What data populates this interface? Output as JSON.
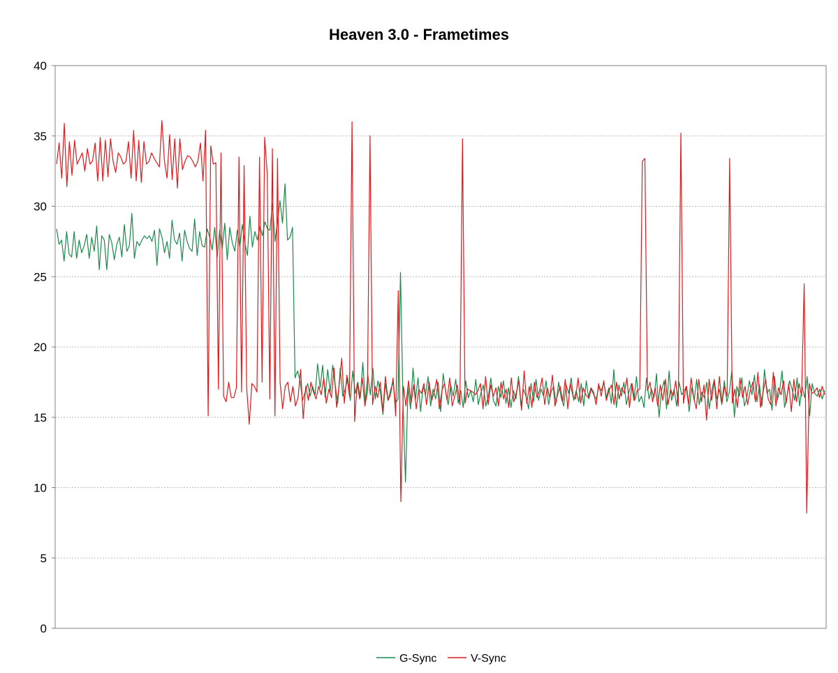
{
  "chart_data": {
    "type": "line",
    "title": "Heaven 3.0 - Frametimes",
    "xlabel": "",
    "ylabel": "",
    "ylim": [
      0,
      40
    ],
    "yticks": [
      0,
      5,
      10,
      15,
      20,
      25,
      30,
      35,
      40
    ],
    "grid": "horizontal dotted",
    "legend_position": "bottom",
    "series": [
      {
        "name": "G-Sync",
        "color": "#1a8a4a",
        "values": [
          28.4,
          27.3,
          27.6,
          26.1,
          28.2,
          26.6,
          26.4,
          28.2,
          26.3,
          27.6,
          26.7,
          27.2,
          28.0,
          26.3,
          27.8,
          26.8,
          28.6,
          25.5,
          27.9,
          27.6,
          25.5,
          28.0,
          27.4,
          26.2,
          27.3,
          27.8,
          26.4,
          28.7,
          26.8,
          27.2,
          29.5,
          26.3,
          27.5,
          27.2,
          27.6,
          27.9,
          27.7,
          27.9,
          27.5,
          28.3,
          25.8,
          28.4,
          27.8,
          26.7,
          27.5,
          26.3,
          29.0,
          27.6,
          27.3,
          28.1,
          26.1,
          28.3,
          27.5,
          27.0,
          26.8,
          29.1,
          26.5,
          28.2,
          27.2,
          27.1,
          28.4,
          27.8,
          26.9,
          28.5,
          26.4,
          28.3,
          27.0,
          28.8,
          26.2,
          28.5,
          27.4,
          26.8,
          28.3,
          27.1,
          28.7,
          27.4,
          26.5,
          29.3,
          27.1,
          28.2,
          27.6,
          28.6,
          27.9,
          28.9,
          28.4,
          28.3,
          30.2,
          27.5,
          28.9,
          30.4,
          28.8,
          31.6,
          27.6,
          27.8,
          28.5,
          17.8,
          18.3,
          17.6,
          16.2,
          16.8,
          17.4,
          16.5,
          17.2,
          16.6,
          18.8,
          17.1,
          18.7,
          16.4,
          18.4,
          16.8,
          18.7,
          17.3,
          16.0,
          18.5,
          16.5,
          17.0,
          17.8,
          16.2,
          18.3,
          16.7,
          17.5,
          16.4,
          18.9,
          16.1,
          18.0,
          16.6,
          18.5,
          16.3,
          17.6,
          16.8,
          15.2,
          17.4,
          16.2,
          16.9,
          17.5,
          16.0,
          16.3,
          25.3,
          16.1,
          10.4,
          17.2,
          15.6,
          18.5,
          16.3,
          17.8,
          15.4,
          17.2,
          16.6,
          17.9,
          15.8,
          17.0,
          16.3,
          17.5,
          15.4,
          18.1,
          16.8,
          15.9,
          17.3,
          16.5,
          17.7,
          16.0,
          16.9,
          15.7,
          17.6,
          16.4,
          16.9,
          16.1,
          17.7,
          15.9,
          16.7,
          17.3,
          15.8,
          16.5,
          17.8,
          16.2,
          15.8,
          17.2,
          16.4,
          17.6,
          16.0,
          17.1,
          15.7,
          16.9,
          16.3,
          17.9,
          15.8,
          17.0,
          16.5,
          15.6,
          17.4,
          16.1,
          17.7,
          16.2,
          17.0,
          16.5,
          17.6,
          15.9,
          16.8,
          17.2,
          16.0,
          17.5,
          16.4,
          15.8,
          17.3,
          16.7,
          17.8,
          16.2,
          16.9,
          16.1,
          17.4,
          15.8,
          17.6,
          16.3,
          17.0,
          16.6,
          16.3,
          17.2,
          16.9,
          17.5,
          16.4,
          17.1,
          16.0,
          18.4,
          15.7,
          17.3,
          16.5,
          17.5,
          15.9,
          16.8,
          17.4,
          16.2,
          17.9,
          16.1,
          16.5,
          15.7,
          17.8,
          16.3,
          17.0,
          16.4,
          18.1,
          15.0,
          16.9,
          17.6,
          15.6,
          18.3,
          16.2,
          17.0,
          15.8,
          17.5,
          16.6,
          16.9,
          17.2,
          15.4,
          17.1,
          16.2,
          17.7,
          15.9,
          16.8,
          16.4,
          17.5,
          15.6,
          16.9,
          17.7,
          16.3,
          17.0,
          15.9,
          17.6,
          16.1,
          16.8,
          18.3,
          15.0,
          17.2,
          16.5,
          17.8,
          15.8,
          16.4,
          17.6,
          16.6,
          18.0,
          16.1,
          17.3,
          15.8,
          18.4,
          16.7,
          17.0,
          15.5,
          17.9,
          16.2,
          16.8,
          18.3,
          15.7,
          16.5,
          17.6,
          17.0,
          16.2,
          17.8,
          15.8,
          17.2,
          16.4,
          17.9,
          15.1,
          17.4,
          16.7,
          16.5,
          17.0,
          16.3,
          16.9
        ]
      },
      {
        "name": "V-Sync",
        "color": "#e0181a",
        "values": [
          33.0,
          34.5,
          32.0,
          35.9,
          31.4,
          34.6,
          32.2,
          34.7,
          33.0,
          33.4,
          33.8,
          32.5,
          34.1,
          33.0,
          33.2,
          34.5,
          31.8,
          34.9,
          31.8,
          34.7,
          32.1,
          34.8,
          33.2,
          32.4,
          33.8,
          33.5,
          33.0,
          33.2,
          34.6,
          32.0,
          35.4,
          31.8,
          34.7,
          31.7,
          34.6,
          33.0,
          33.2,
          33.8,
          33.4,
          33.1,
          32.8,
          36.1,
          33.2,
          32.0,
          35.1,
          31.9,
          34.8,
          31.3,
          34.8,
          32.6,
          33.2,
          33.6,
          33.5,
          33.2,
          32.8,
          33.2,
          34.5,
          31.8,
          35.4,
          15.1,
          34.3,
          33.0,
          33.1,
          17.0,
          33.8,
          16.5,
          16.1,
          17.5,
          16.4,
          16.4,
          17.1,
          33.5,
          16.8,
          32.9,
          17.1,
          14.5,
          17.4,
          17.2,
          16.8,
          33.5,
          17.5,
          34.9,
          32.3,
          16.3,
          34.1,
          15.1,
          33.4,
          17.5,
          15.6,
          17.2,
          17.5,
          16.1,
          17.2,
          15.8,
          16.4,
          18.4,
          14.9,
          17.2,
          16.2,
          17.5,
          16.8,
          16.3,
          17.2,
          16.6,
          17.8,
          16.0,
          17.0,
          16.4,
          18.5,
          15.7,
          17.3,
          19.2,
          16.0,
          18.0,
          16.5,
          36.0,
          14.7,
          17.4,
          16.3,
          17.8,
          15.8,
          16.8,
          35.0,
          15.9,
          17.2,
          16.4,
          17.5,
          15.4,
          17.9,
          16.2,
          16.6,
          17.8,
          15.1,
          24.0,
          9.0,
          17.2,
          15.8,
          17.6,
          16.0,
          17.3,
          15.6,
          17.0,
          16.7,
          17.4,
          15.9,
          17.5,
          16.2,
          16.8,
          17.7,
          15.6,
          16.9,
          17.4,
          16.2,
          17.8,
          15.8,
          16.5,
          17.3,
          15.9,
          34.8,
          16.0,
          17.0,
          16.9,
          16.8,
          16.6,
          16.9,
          17.4,
          15.6,
          17.9,
          15.9,
          17.3,
          16.5,
          17.1,
          15.8,
          17.5,
          16.3,
          17.0,
          15.7,
          17.8,
          16.1,
          16.8,
          17.6,
          15.5,
          18.3,
          16.0,
          17.2,
          15.7,
          17.5,
          16.4,
          16.9,
          17.8,
          15.9,
          17.1,
          16.4,
          18.0,
          15.8,
          16.6,
          17.2,
          16.1,
          17.7,
          15.6,
          17.4,
          16.5,
          16.3,
          17.8,
          16.0,
          17.1,
          16.6,
          16.4,
          17.1,
          16.8,
          15.9,
          17.4,
          16.5,
          17.6,
          16.2,
          16.9,
          17.3,
          15.9,
          17.5,
          16.3,
          17.1,
          16.7,
          17.8,
          15.7,
          17.4,
          16.2,
          16.9,
          17.0,
          33.2,
          33.4,
          16.9,
          17.5,
          16.1,
          17.1,
          15.8,
          17.3,
          16.2,
          17.7,
          15.9,
          17.0,
          16.5,
          17.6,
          15.8,
          35.2,
          16.0,
          17.2,
          15.9,
          17.8,
          16.4,
          15.6,
          17.7,
          16.1,
          17.3,
          14.8,
          17.7,
          16.2,
          17.6,
          15.6,
          17.9,
          16.0,
          17.2,
          16.5,
          33.4,
          16.0,
          17.0,
          15.7,
          17.8,
          16.4,
          17.2,
          15.9,
          16.9,
          17.5,
          16.1,
          18.2,
          15.7,
          16.8,
          17.7,
          16.3,
          15.9,
          18.2,
          15.8,
          17.1,
          16.6,
          17.6,
          16.0,
          17.4,
          15.4,
          17.7,
          16.1,
          17.4,
          16.5,
          24.5,
          8.2,
          17.4,
          16.7,
          16.8,
          17.1,
          16.4,
          17.2,
          16.6
        ]
      }
    ]
  }
}
